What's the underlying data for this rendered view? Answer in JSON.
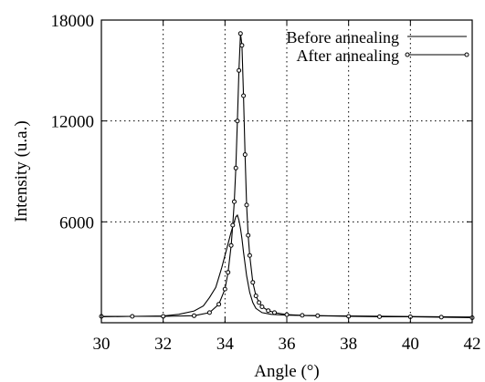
{
  "chart_data": {
    "type": "line",
    "title": "",
    "xlabel": "Angle (°)",
    "ylabel": "Intensity (u.a.)",
    "xlim": [
      30,
      42
    ],
    "ylim": [
      0,
      18000
    ],
    "xticks": [
      30,
      32,
      34,
      36,
      38,
      40,
      42
    ],
    "yticks": [
      6000,
      12000,
      18000
    ],
    "grid": true,
    "legend_position": "top-right",
    "series": [
      {
        "name": "Before annealing",
        "marker": "none",
        "x": [
          30.0,
          31.0,
          32.0,
          32.5,
          33.0,
          33.3,
          33.5,
          33.7,
          33.8,
          33.9,
          34.0,
          34.1,
          34.2,
          34.3,
          34.35,
          34.4,
          34.45,
          34.5,
          34.55,
          34.6,
          34.65,
          34.7,
          34.8,
          34.9,
          35.0,
          35.2,
          35.5,
          36.0,
          37.0,
          38.0,
          40.0,
          42.0
        ],
        "y": [
          350,
          380,
          400,
          500,
          700,
          1000,
          1500,
          2100,
          2700,
          3300,
          4000,
          4700,
          5400,
          6000,
          6300,
          6400,
          6100,
          5600,
          5000,
          4200,
          3500,
          2800,
          1800,
          1200,
          850,
          600,
          500,
          450,
          420,
          400,
          370,
          340
        ]
      },
      {
        "name": "After annealing",
        "marker": "circle",
        "x": [
          30.0,
          31.0,
          32.0,
          33.0,
          33.5,
          33.8,
          34.0,
          34.1,
          34.2,
          34.25,
          34.3,
          34.35,
          34.4,
          34.45,
          34.5,
          34.55,
          34.6,
          34.65,
          34.7,
          34.75,
          34.8,
          34.9,
          35.0,
          35.1,
          35.2,
          35.4,
          35.6,
          36.0,
          36.5,
          37.0,
          38.0,
          39.0,
          40.0,
          41.0,
          42.0
        ],
        "y": [
          380,
          380,
          380,
          420,
          600,
          1100,
          2000,
          3000,
          4600,
          5800,
          7200,
          9200,
          12000,
          15000,
          17200,
          16500,
          13500,
          10000,
          7000,
          5200,
          4000,
          2400,
          1600,
          1200,
          950,
          720,
          600,
          480,
          440,
          420,
          380,
          360,
          350,
          330,
          300
        ]
      }
    ]
  }
}
